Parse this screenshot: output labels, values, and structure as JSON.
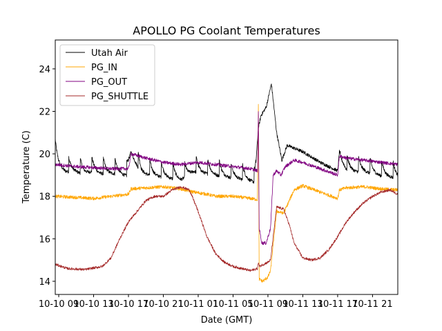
{
  "chart_data": {
    "type": "line",
    "title": "APOLLO PG Coolant Temperatures",
    "xlabel": "Date (GMT)",
    "ylabel": "Temperature (C)",
    "x_unit": "hours since 10-10 09:00 GMT",
    "xlim": [
      -0.4,
      38.9
    ],
    "ylim": [
      13.38,
      25.36
    ],
    "grid": false,
    "legend_position": "top-left",
    "x_ticks": [
      {
        "value": 0,
        "label": "10-10 09"
      },
      {
        "value": 4,
        "label": "10-10 13"
      },
      {
        "value": 8,
        "label": "10-10 17"
      },
      {
        "value": 12,
        "label": "10-10 21"
      },
      {
        "value": 16,
        "label": "10-11 01"
      },
      {
        "value": 20,
        "label": "10-11 05"
      },
      {
        "value": 24,
        "label": "10-11 09"
      },
      {
        "value": 28,
        "label": "10-11 13"
      },
      {
        "value": 32,
        "label": "10-11 17"
      },
      {
        "value": 36,
        "label": "10-11 21"
      }
    ],
    "y_ticks": [
      {
        "value": 14,
        "label": "14"
      },
      {
        "value": 16,
        "label": "16"
      },
      {
        "value": 18,
        "label": "18"
      },
      {
        "value": 20,
        "label": "20"
      },
      {
        "value": 22,
        "label": "22"
      },
      {
        "value": 24,
        "label": "24"
      }
    ],
    "series": [
      {
        "name": "Utah Air",
        "color": "#000000",
        "x": [
          -0.4,
          0.8,
          1.8,
          2.8,
          3.8,
          4.8,
          5.8,
          6.8,
          7.8,
          8.3,
          9.5,
          11,
          12.5,
          14,
          15.5,
          17,
          18.5,
          20,
          21.5,
          22.5,
          22.9,
          23.2,
          23.8,
          24.4,
          25.0,
          25.6,
          26.2,
          28,
          30,
          32,
          32.2,
          33,
          34,
          35,
          36,
          37,
          38.9
        ],
        "y": [
          19.6,
          19.4,
          19.4,
          19.3,
          19.4,
          19.3,
          19.3,
          19.3,
          19.2,
          20.2,
          19.3,
          19.2,
          19.1,
          19.0,
          19.4,
          19.3,
          19.2,
          19.1,
          19.0,
          18.9,
          21.2,
          21.8,
          22.2,
          23.3,
          21.0,
          19.7,
          20.4,
          20.1,
          19.6,
          19.2,
          20.1,
          19.5,
          19.4,
          19.4,
          19.3,
          19.2,
          19.1
        ],
        "sawtooth": true
      },
      {
        "name": "PG_IN",
        "color": "#ffa500",
        "x": [
          -0.4,
          2,
          4,
          6,
          8,
          8.3,
          10,
          12,
          14,
          15.5,
          17,
          18,
          20,
          22,
          22.8,
          22.9,
          23.0,
          23.4,
          24.0,
          24.3,
          25.0,
          25.8,
          27,
          28,
          30,
          32,
          32.2,
          33,
          35,
          37,
          38.9
        ],
        "y": [
          18.0,
          17.95,
          17.9,
          18.0,
          18.1,
          18.35,
          18.4,
          18.45,
          18.35,
          18.2,
          18.1,
          18.0,
          18.0,
          17.9,
          17.85,
          22.4,
          14.1,
          14.0,
          14.2,
          14.5,
          17.3,
          17.2,
          18.3,
          18.5,
          18.2,
          17.9,
          18.3,
          18.4,
          18.45,
          18.35,
          18.3
        ]
      },
      {
        "name": "PG_OUT",
        "color": "#800080",
        "x": [
          -0.4,
          2,
          4,
          6,
          8,
          8.3,
          10,
          12,
          14,
          16,
          18,
          20,
          22,
          22.8,
          22.9,
          23.0,
          23.3,
          23.8,
          24.3,
          24.6,
          25.0,
          25.5,
          26,
          27,
          28,
          30,
          32,
          32.2,
          33,
          35,
          37,
          38.9
        ],
        "y": [
          19.5,
          19.4,
          19.35,
          19.3,
          19.3,
          20.0,
          19.8,
          19.6,
          19.5,
          19.6,
          19.5,
          19.4,
          19.3,
          19.2,
          22.0,
          16.5,
          15.8,
          15.8,
          16.5,
          19.0,
          19.2,
          19.0,
          19.4,
          19.7,
          19.6,
          19.3,
          19.0,
          19.9,
          19.8,
          19.7,
          19.6,
          19.5
        ]
      },
      {
        "name": "PG_SHUTTLE",
        "color": "#a52a2a",
        "x": [
          -0.4,
          1,
          3,
          5,
          6,
          7,
          8,
          9,
          10,
          11,
          12,
          13,
          14,
          15,
          15.8,
          16.5,
          17,
          18,
          19,
          20,
          21,
          22,
          22.8,
          22.9,
          23.0,
          24.0,
          24.3,
          25.0,
          25.8,
          26.5,
          27,
          28,
          29,
          30,
          31,
          32,
          33,
          34,
          35,
          36,
          37,
          38,
          38.9
        ],
        "y": [
          14.8,
          14.6,
          14.55,
          14.7,
          15.1,
          16.0,
          16.8,
          17.3,
          17.8,
          18.0,
          18.0,
          18.3,
          18.45,
          18.3,
          17.5,
          16.7,
          16.1,
          15.3,
          14.9,
          14.7,
          14.6,
          14.5,
          14.6,
          14.9,
          14.7,
          14.9,
          15.0,
          17.5,
          17.4,
          16.6,
          15.8,
          15.1,
          15.0,
          15.1,
          15.5,
          16.1,
          16.8,
          17.3,
          17.7,
          18.0,
          18.2,
          18.3,
          18.1
        ]
      }
    ]
  }
}
